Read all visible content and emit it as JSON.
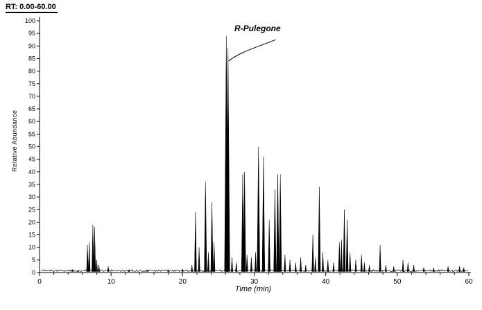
{
  "header": {
    "rt_label": "RT: 0.00-60.00"
  },
  "chart_data": {
    "type": "line",
    "title": "",
    "xlabel": "Time (min)",
    "ylabel": "Relative Abundance",
    "xlim": [
      0,
      60
    ],
    "ylim": [
      0,
      100
    ],
    "x_major_tick": 10,
    "x_minor_tick": 2,
    "y_tick": 5,
    "grid": false,
    "legend": "none",
    "line_color": "#000000",
    "baseline_level": 0.7,
    "annotation": {
      "label": "R-Pulegone",
      "peak_time": 26.1,
      "peak_height": 94,
      "point_height": 84,
      "text_time": 27.2,
      "text_height": 99,
      "leader_end_time": 33.0,
      "leader_end_height": 92.5
    },
    "peaks": [
      [
        4.6,
        1.2
      ],
      [
        5.4,
        1.0
      ],
      [
        6.7,
        11
      ],
      [
        6.95,
        12
      ],
      [
        7.45,
        19
      ],
      [
        7.7,
        18
      ],
      [
        8.0,
        5
      ],
      [
        8.3,
        3
      ],
      [
        9.6,
        2.5
      ],
      [
        12.5,
        1.2
      ],
      [
        15.0,
        1.0
      ],
      [
        18.0,
        1.2
      ],
      [
        20.0,
        1.5
      ],
      [
        21.3,
        3
      ],
      [
        21.8,
        24
      ],
      [
        22.3,
        10
      ],
      [
        23.2,
        36
      ],
      [
        23.6,
        8
      ],
      [
        24.1,
        28
      ],
      [
        24.4,
        12
      ],
      [
        26.1,
        94
      ],
      [
        26.35,
        89
      ],
      [
        26.9,
        6
      ],
      [
        27.5,
        4
      ],
      [
        28.4,
        39
      ],
      [
        28.65,
        40
      ],
      [
        29.0,
        7
      ],
      [
        29.6,
        6
      ],
      [
        30.2,
        8
      ],
      [
        30.6,
        50
      ],
      [
        31.3,
        46
      ],
      [
        32.1,
        21
      ],
      [
        32.9,
        33
      ],
      [
        33.3,
        39
      ],
      [
        33.65,
        39
      ],
      [
        34.3,
        7
      ],
      [
        35.0,
        5
      ],
      [
        35.8,
        4
      ],
      [
        36.5,
        6
      ],
      [
        37.2,
        3
      ],
      [
        38.2,
        15
      ],
      [
        38.55,
        6
      ],
      [
        39.1,
        34
      ],
      [
        39.6,
        8
      ],
      [
        40.3,
        5
      ],
      [
        41.1,
        4
      ],
      [
        41.9,
        12
      ],
      [
        42.2,
        13
      ],
      [
        42.6,
        25
      ],
      [
        43.0,
        21
      ],
      [
        43.4,
        8
      ],
      [
        44.2,
        5
      ],
      [
        45.0,
        7
      ],
      [
        45.4,
        4
      ],
      [
        46.1,
        3
      ],
      [
        47.6,
        11
      ],
      [
        48.4,
        3
      ],
      [
        49.5,
        2.5
      ],
      [
        50.8,
        5
      ],
      [
        51.5,
        4
      ],
      [
        52.3,
        3
      ],
      [
        53.7,
        2
      ],
      [
        55.1,
        2
      ],
      [
        57.1,
        2.5
      ],
      [
        58.7,
        2.5
      ],
      [
        59.3,
        2
      ]
    ]
  }
}
